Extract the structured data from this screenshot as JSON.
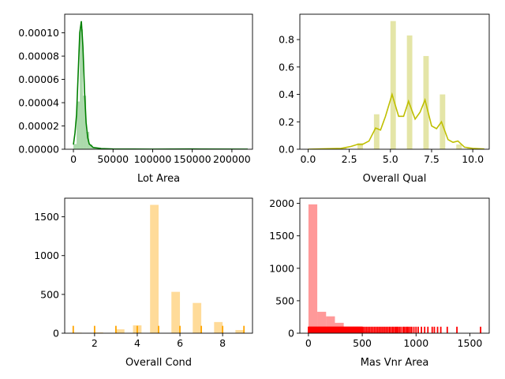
{
  "chart_data": [
    {
      "type": "histogram+kde",
      "xlabel": "Lot Area",
      "xlim": [
        -11000,
        226000
      ],
      "ylim": [
        0,
        0.000116
      ],
      "xticks": [
        0,
        50000,
        100000,
        150000,
        200000
      ],
      "xtick_labels": [
        "0",
        "50000",
        "100000",
        "150000",
        "200000"
      ],
      "yticks": [
        0,
        2e-05,
        4e-05,
        6e-05,
        8e-05,
        0.0001
      ],
      "ytick_labels": [
        "0.00000",
        "0.00002",
        "0.00004",
        "0.00006",
        "0.00008",
        "0.00010"
      ],
      "bar_color": "#2ca02c",
      "line_color": "#008000",
      "bars": [
        {
          "x0": 0,
          "x1": 4000,
          "value": 4.5e-06
        },
        {
          "x0": 4000,
          "x1": 8000,
          "value": 4.1e-05
        },
        {
          "x0": 8000,
          "x1": 12000,
          "value": 0.000103
        },
        {
          "x0": 12000,
          "x1": 16000,
          "value": 4.6e-05
        },
        {
          "x0": 16000,
          "x1": 20000,
          "value": 1.5e-05
        },
        {
          "x0": 20000,
          "x1": 24000,
          "value": 4e-06
        },
        {
          "x0": 24000,
          "x1": 30000,
          "value": 1.5e-06
        },
        {
          "x0": 30000,
          "x1": 40000,
          "value": 7e-07
        }
      ],
      "kde": [
        [
          0,
          4e-06
        ],
        [
          2000,
          1.4e-05
        ],
        [
          4000,
          3e-05
        ],
        [
          6000,
          6.5e-05
        ],
        [
          8000,
          0.0001
        ],
        [
          10000,
          0.00011
        ],
        [
          12000,
          8.8e-05
        ],
        [
          14000,
          5e-05
        ],
        [
          16000,
          2.3e-05
        ],
        [
          18000,
          1e-05
        ],
        [
          20000,
          4.5e-06
        ],
        [
          25000,
          1.5e-06
        ],
        [
          35000,
          6e-07
        ],
        [
          50000,
          2e-07
        ],
        [
          100000,
          5e-08
        ],
        [
          150000,
          2e-07
        ],
        [
          220000,
          5e-08
        ]
      ]
    },
    {
      "type": "histogram+kde",
      "xlabel": "Overall Qual",
      "xlim": [
        -0.5,
        11
      ],
      "ylim": [
        0,
        0.985
      ],
      "xticks": [
        0,
        2.5,
        5,
        7.5,
        10
      ],
      "xtick_labels": [
        "0.0",
        "2.5",
        "5.0",
        "7.5",
        "10.0"
      ],
      "yticks": [
        0,
        0.2,
        0.4,
        0.6,
        0.8
      ],
      "ytick_labels": [
        "0.0",
        "0.2",
        "0.4",
        "0.6",
        "0.8"
      ],
      "bar_color": "#bcbd22",
      "line_color": "#bfbf00",
      "bars": [
        {
          "x0": 1,
          "x1": 1.33,
          "value": 0.003
        },
        {
          "x0": 2,
          "x1": 2.33,
          "value": 0.009
        },
        {
          "x0": 3,
          "x1": 3.33,
          "value": 0.045
        },
        {
          "x0": 4,
          "x1": 4.33,
          "value": 0.255
        },
        {
          "x0": 5,
          "x1": 5.33,
          "value": 0.935
        },
        {
          "x0": 6,
          "x1": 6.33,
          "value": 0.83
        },
        {
          "x0": 7,
          "x1": 7.33,
          "value": 0.68
        },
        {
          "x0": 8,
          "x1": 8.33,
          "value": 0.4
        },
        {
          "x0": 9,
          "x1": 9.33,
          "value": 0.035
        },
        {
          "x0": 9.67,
          "x1": 10,
          "value": 0.01
        }
      ],
      "kde": [
        [
          0,
          0.0
        ],
        [
          1,
          0.003
        ],
        [
          2,
          0.006
        ],
        [
          2.6,
          0.02
        ],
        [
          3,
          0.035
        ],
        [
          3.3,
          0.035
        ],
        [
          3.7,
          0.06
        ],
        [
          4.1,
          0.155
        ],
        [
          4.4,
          0.14
        ],
        [
          4.7,
          0.24
        ],
        [
          5.1,
          0.4
        ],
        [
          5.5,
          0.24
        ],
        [
          5.8,
          0.24
        ],
        [
          6.1,
          0.35
        ],
        [
          6.5,
          0.22
        ],
        [
          6.8,
          0.27
        ],
        [
          7.1,
          0.36
        ],
        [
          7.5,
          0.17
        ],
        [
          7.8,
          0.15
        ],
        [
          8.1,
          0.2
        ],
        [
          8.5,
          0.07
        ],
        [
          8.8,
          0.05
        ],
        [
          9.1,
          0.06
        ],
        [
          9.5,
          0.015
        ],
        [
          10,
          0.006
        ],
        [
          10.7,
          0.002
        ]
      ]
    },
    {
      "type": "histogram+rug",
      "xlabel": "Overall Cond",
      "xlim": [
        0.6,
        9.4
      ],
      "ylim": [
        0,
        1740
      ],
      "xticks": [
        2,
        4,
        6,
        8
      ],
      "xtick_labels": [
        "2",
        "4",
        "6",
        "8"
      ],
      "yticks": [
        0,
        500,
        1000,
        1500
      ],
      "ytick_labels": [
        "0",
        "500",
        "1000",
        "1500"
      ],
      "bar_color": "#ffa500",
      "rug_color": "#ffa500",
      "rug_height": 95,
      "bars": [
        {
          "x0": 1,
          "x1": 1.4,
          "value": 7
        },
        {
          "x0": 2,
          "x1": 2.4,
          "value": 10
        },
        {
          "x0": 3,
          "x1": 3.4,
          "value": 50
        },
        {
          "x0": 3.8,
          "x1": 4.2,
          "value": 101
        },
        {
          "x0": 4.6,
          "x1": 5.0,
          "value": 1654
        },
        {
          "x0": 5.6,
          "x1": 6.0,
          "value": 533
        },
        {
          "x0": 6.6,
          "x1": 7.0,
          "value": 390
        },
        {
          "x0": 7.6,
          "x1": 8.0,
          "value": 144
        },
        {
          "x0": 8.6,
          "x1": 9.0,
          "value": 41
        }
      ],
      "rug": [
        1,
        2,
        3,
        4,
        5,
        6,
        7,
        8,
        9
      ]
    },
    {
      "type": "histogram+rug",
      "xlabel": "Mas Vnr Area",
      "xlim": [
        -80,
        1680
      ],
      "ylim": [
        0,
        2080
      ],
      "xticks": [
        0,
        500,
        1000,
        1500
      ],
      "xtick_labels": [
        "0",
        "500",
        "1000",
        "1500"
      ],
      "yticks": [
        0,
        500,
        1000,
        1500,
        2000
      ],
      "ytick_labels": [
        "0",
        "500",
        "1000",
        "1500",
        "2000"
      ],
      "bar_color": "#ff0000",
      "rug_color": "#ff0000",
      "rug_height": 100,
      "bars": [
        {
          "x0": 0,
          "x1": 82,
          "value": 1985
        },
        {
          "x0": 82,
          "x1": 164,
          "value": 330
        },
        {
          "x0": 164,
          "x1": 246,
          "value": 260
        },
        {
          "x0": 246,
          "x1": 328,
          "value": 160
        },
        {
          "x0": 328,
          "x1": 410,
          "value": 85
        },
        {
          "x0": 410,
          "x1": 492,
          "value": 50
        },
        {
          "x0": 492,
          "x1": 574,
          "value": 35
        },
        {
          "x0": 574,
          "x1": 656,
          "value": 22
        },
        {
          "x0": 656,
          "x1": 738,
          "value": 15
        },
        {
          "x0": 738,
          "x1": 820,
          "value": 12
        },
        {
          "x0": 820,
          "x1": 902,
          "value": 8
        },
        {
          "x0": 902,
          "x1": 984,
          "value": 6
        },
        {
          "x0": 984,
          "x1": 1066,
          "value": 5
        },
        {
          "x0": 1066,
          "x1": 1148,
          "value": 3
        },
        {
          "x0": 1148,
          "x1": 1230,
          "value": 2
        }
      ],
      "rug_dense_to": 500,
      "rug": [
        510,
        525,
        540,
        555,
        570,
        585,
        600,
        615,
        630,
        645,
        660,
        675,
        690,
        705,
        720,
        735,
        750,
        762,
        778,
        790,
        805,
        818,
        830,
        845,
        860,
        878,
        890,
        905,
        918,
        930,
        945,
        960,
        980,
        1000,
        1020,
        1050,
        1080,
        1110,
        1150,
        1170,
        1200,
        1230,
        1290,
        1380,
        1600
      ]
    }
  ]
}
